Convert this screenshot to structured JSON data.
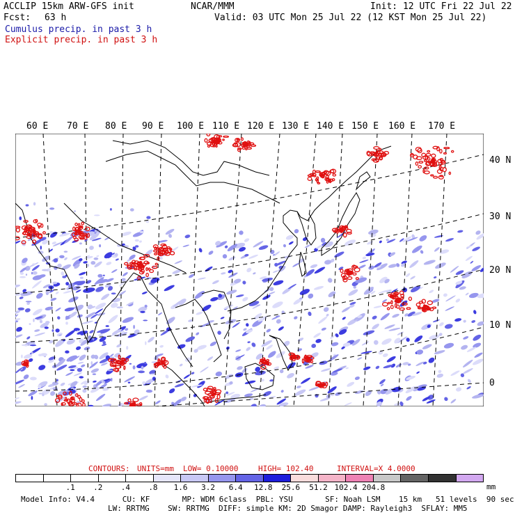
{
  "header": {
    "title_left": "ACCLIP 15km ARW-GFS init",
    "title_center": "NCAR/MMM",
    "init": "Init: 12 UTC Fri 22 Jul 22",
    "fcst_label": "Fcst:",
    "fcst_value": "63 h",
    "valid": "Valid: 03 UTC Mon 25 Jul 22 (12 KST Mon 25 Jul 22)",
    "legend_cumulus": "Cumulus precip. in past 3 h",
    "legend_explicit": "Explicit precip. in past 3 h"
  },
  "map": {
    "lon_labels": [
      "60 E",
      "70 E",
      "80 E",
      "90 E",
      "100 E",
      "110 E",
      "120 E",
      "130 E",
      "140 E",
      "150 E",
      "160 E",
      "170 E"
    ],
    "lat_labels": [
      "40 N",
      "30 N",
      "20 N",
      "10 N",
      "0"
    ]
  },
  "contours": {
    "label": "CONTOURS:",
    "units": "UNITS=mm",
    "low": "LOW= 0.10000",
    "high": "HIGH= 102.40",
    "interval": "INTERVAL=X 4.0000"
  },
  "colorbar": {
    "colors": [
      "#ffffff",
      "#ffffff",
      "#ffffff",
      "#ffffff",
      "#ffffff",
      "#e6e6fa",
      "#c8c8f5",
      "#9696ee",
      "#6464e6",
      "#1e1edc",
      "#fadcdc",
      "#f5b4c8",
      "#ee82b4",
      "#c8c8c8",
      "#646464",
      "#323232",
      "#d2a8f0"
    ],
    "ticks": [
      ".1",
      ".2",
      ".4",
      ".8",
      "1.6",
      "3.2",
      "6.4",
      "12.8",
      "25.6",
      "51.2",
      "102.4",
      "204.8"
    ],
    "unit": "mm"
  },
  "footer": {
    "line1": "Model Info: V4.4      CU: KF       MP: WDM 6class  PBL: YSU       SF: Noah LSM    15 km   51 levels  90 sec",
    "line2": "LW: RRTMG    SW: RRTMG  DIFF: simple KM: 2D Smagor DAMP: Rayleigh3  SFLAY: MM5"
  }
}
